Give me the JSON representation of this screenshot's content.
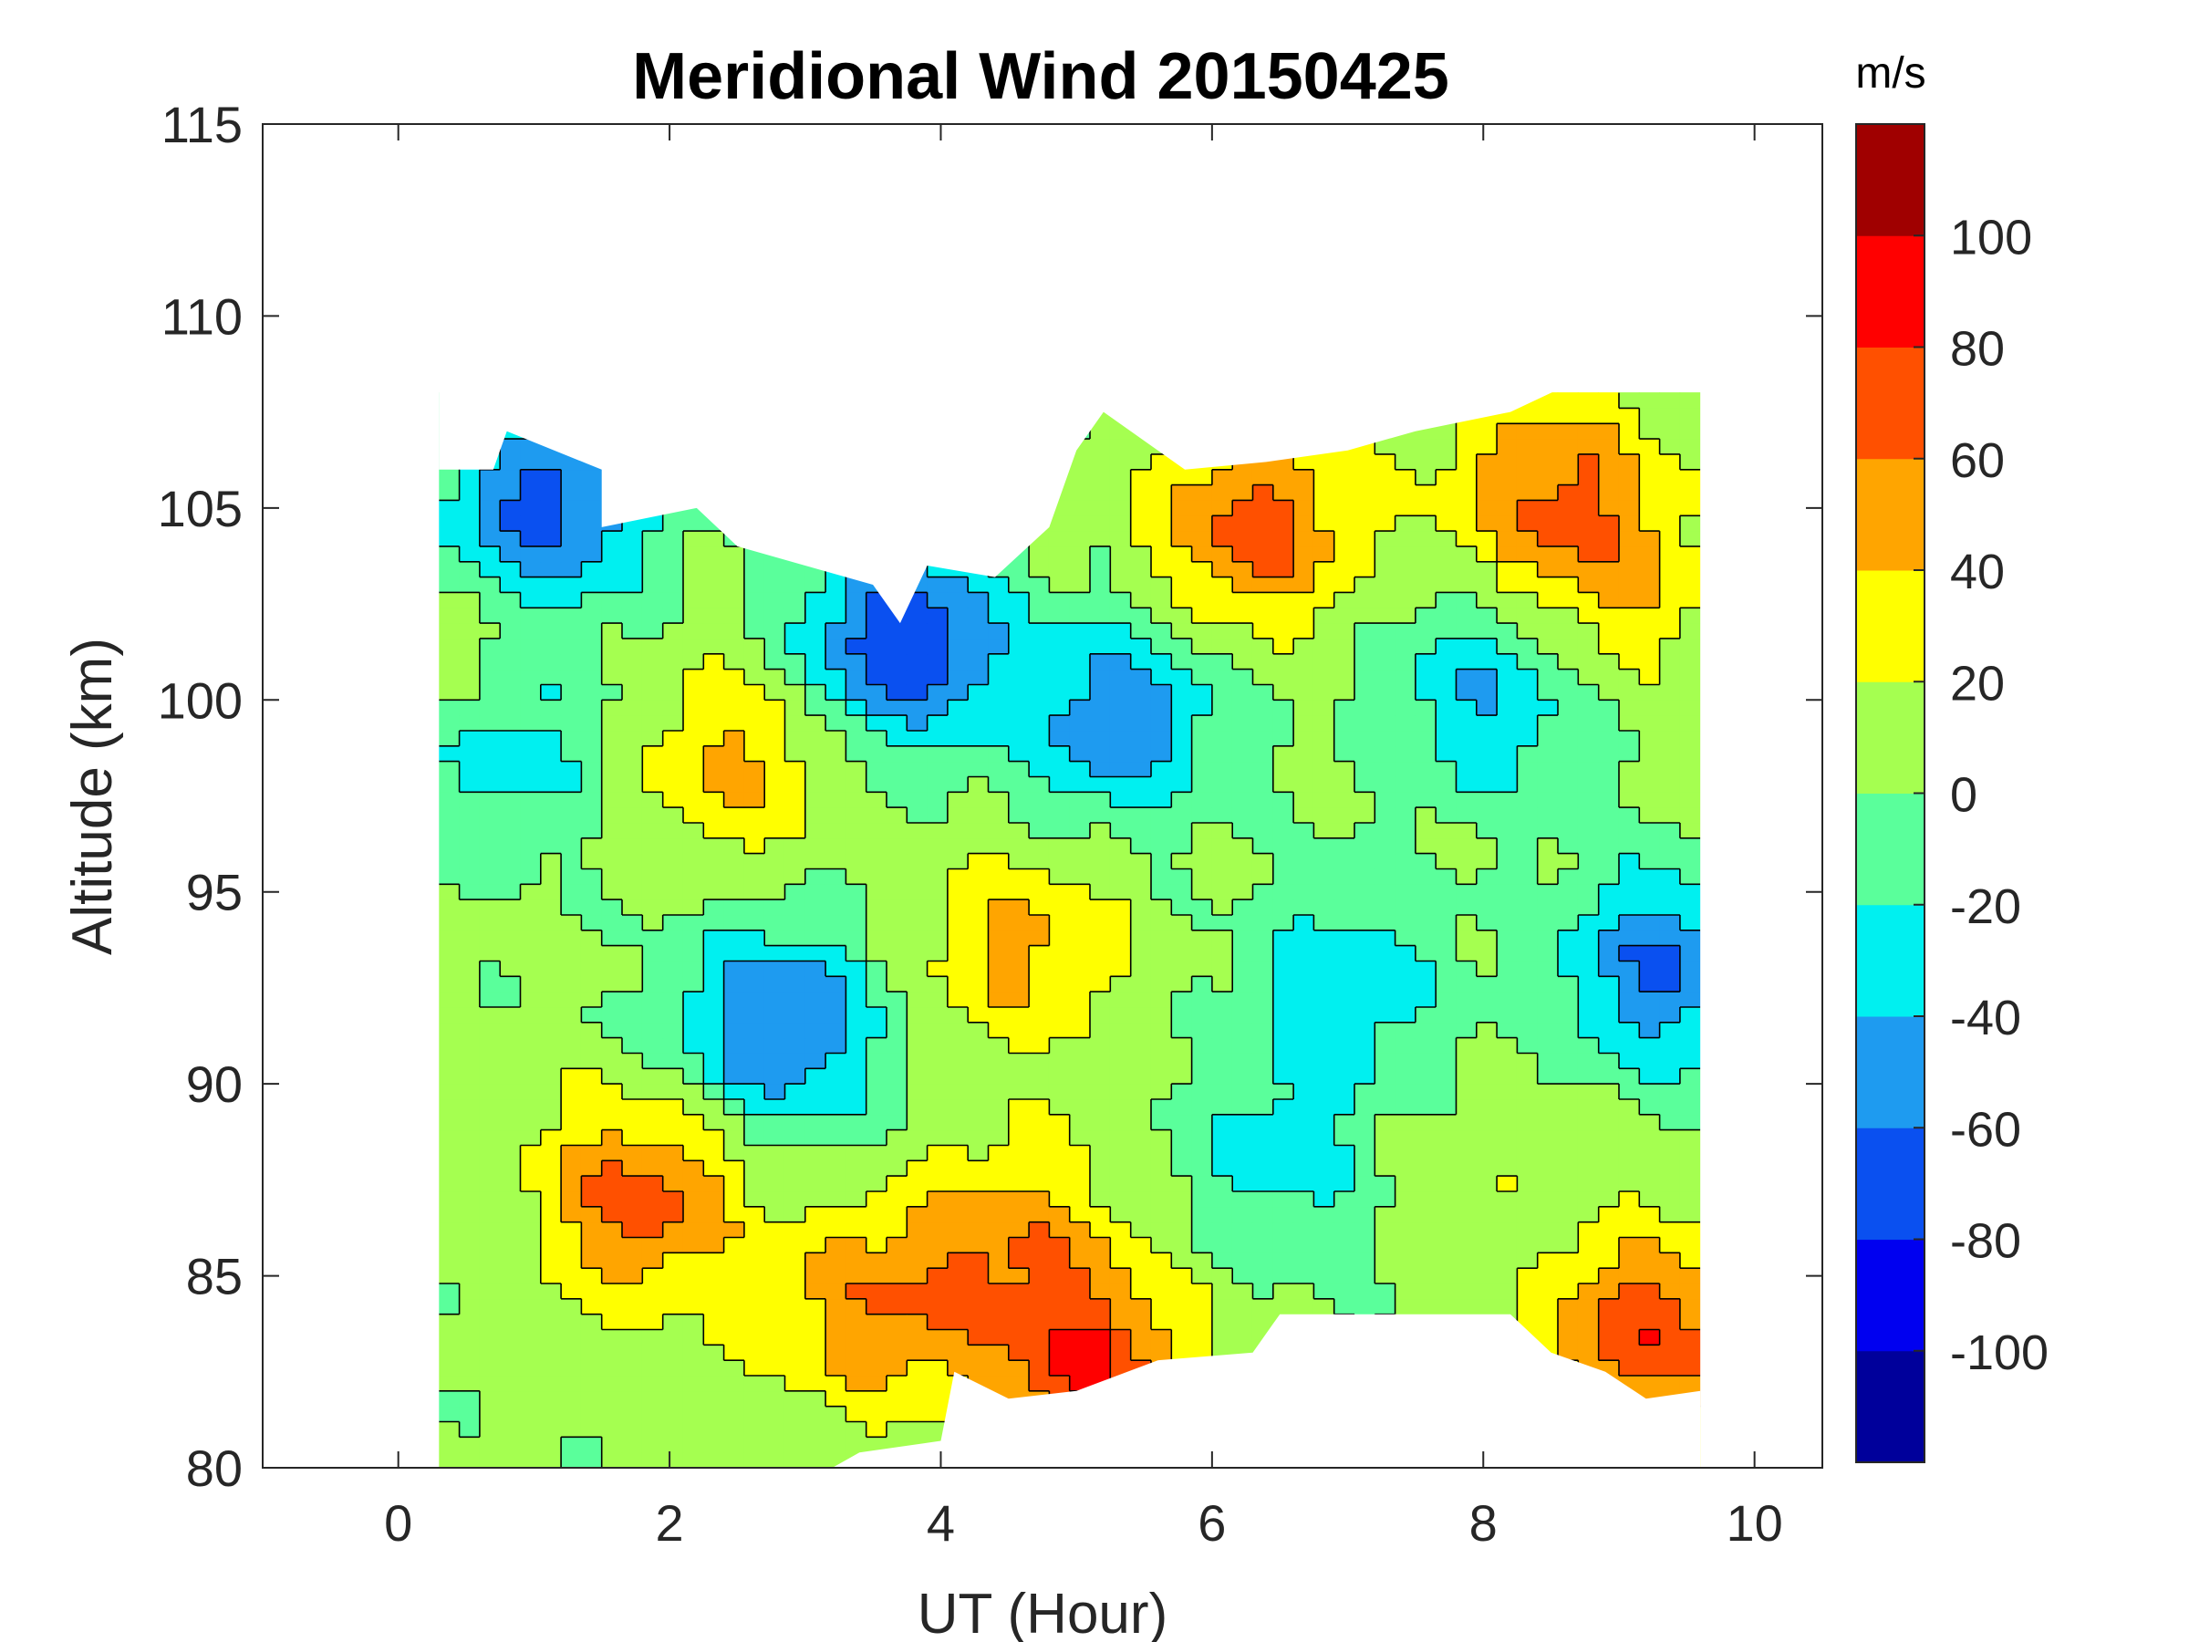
{
  "chart_data": {
    "type": "heatmap",
    "subtype": "filled-contour",
    "title": "Meridional Wind 20150425",
    "xlabel": "UT (Hour)",
    "ylabel": "Altitude (km)",
    "xlim": [
      -1,
      10.5
    ],
    "ylim": [
      80,
      115
    ],
    "xticks": [
      0,
      2,
      4,
      6,
      8,
      10
    ],
    "yticks": [
      80,
      85,
      90,
      95,
      100,
      105,
      110,
      115
    ],
    "x_tick_labels": [
      "0",
      "2",
      "4",
      "6",
      "8",
      "10"
    ],
    "y_tick_labels": [
      "80",
      "85",
      "90",
      "95",
      "100",
      "105",
      "110",
      "115"
    ],
    "data_extent": {
      "x": [
        0.3,
        9.6
      ],
      "y": [
        80,
        108
      ]
    },
    "colorbar": {
      "unit": "m/s",
      "range": [
        -120,
        120
      ],
      "step": 20,
      "tick_values": [
        -100,
        -80,
        -60,
        -40,
        -20,
        0,
        20,
        40,
        60,
        80,
        100
      ],
      "tick_labels": [
        "-100",
        "-80",
        "-60",
        "-40",
        "-20",
        "0",
        "20",
        "40",
        "60",
        "80",
        "100"
      ],
      "colors": [
        "#00009b",
        "#0000f0",
        "#0a50f0",
        "#1e9bf0",
        "#00f0f0",
        "#5aff9b",
        "#a5ff50",
        "#ffff00",
        "#ffa500",
        "#ff5000",
        "#ff0000",
        "#a00000"
      ]
    },
    "features": [
      {
        "x": 1.1,
        "y": 105.0,
        "value": -70
      },
      {
        "x": 0.8,
        "y": 99.0,
        "value": -40
      },
      {
        "x": 0.5,
        "y": 100.5,
        "value": 30
      },
      {
        "x": 2.5,
        "y": 98.5,
        "value": 45
      },
      {
        "x": 3.7,
        "y": 101.5,
        "value": -80
      },
      {
        "x": 5.3,
        "y": 99.5,
        "value": -55
      },
      {
        "x": 2.8,
        "y": 91.5,
        "value": -65
      },
      {
        "x": 4.6,
        "y": 93.5,
        "value": 45
      },
      {
        "x": 1.8,
        "y": 87.0,
        "value": 70
      },
      {
        "x": 4.5,
        "y": 86.0,
        "value": 50
      },
      {
        "x": 6.3,
        "y": 104.5,
        "value": 70
      },
      {
        "x": 8.5,
        "y": 105.5,
        "value": 60
      },
      {
        "x": 9.3,
        "y": 93.0,
        "value": -60
      },
      {
        "x": 7.0,
        "y": 92.5,
        "value": -35
      },
      {
        "x": 7.8,
        "y": 88.0,
        "value": 15
      },
      {
        "x": 6.5,
        "y": 88.0,
        "value": -30
      },
      {
        "x": 9.2,
        "y": 83.5,
        "value": 75
      },
      {
        "x": 5.1,
        "y": 82.5,
        "value": 80
      },
      {
        "x": 9.0,
        "y": 103.0,
        "value": 35
      },
      {
        "x": 8.0,
        "y": 100.0,
        "value": -40
      },
      {
        "x": 3.5,
        "y": 84.0,
        "value": 55
      }
    ],
    "background_value": 5
  }
}
